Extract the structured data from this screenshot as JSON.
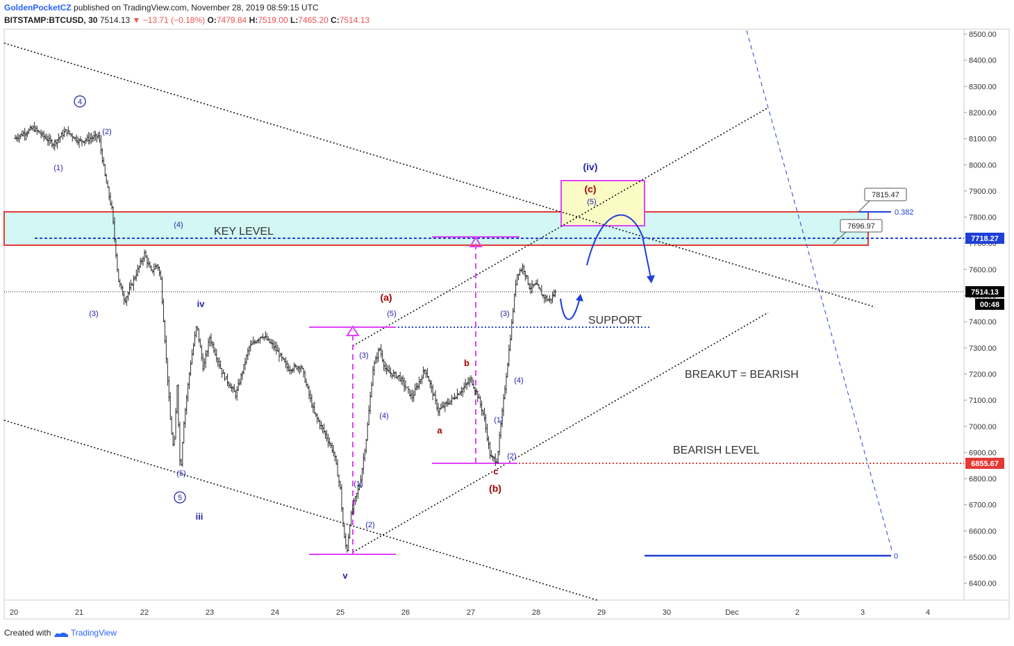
{
  "header": {
    "author": "GoldenPocketCZ",
    "published": "published on TradingView.com, November 28, 2019 08:59:15 UTC",
    "symbol": "BITSTAMP:BTCUSD, 30",
    "last": "7514.13",
    "change": "▼ −13.71 (−0.18%)",
    "o_label": "O:",
    "o": "7479.84",
    "h_label": "H:",
    "h": "7519.00",
    "l_label": "L:",
    "l": "7465.20",
    "c_label": "C:",
    "c": "7514.13"
  },
  "footer": {
    "prefix": "Created with",
    "brand": "TradingView"
  },
  "colors": {
    "key_zone_fill": "#d2f7f4",
    "key_zone_border": "#e53935",
    "target_box_fill": "#fbfbc6",
    "target_box_border": "#e040fb",
    "blue_line": "#1e3fd8",
    "red_line": "#e53935",
    "magenta": "#e040fb",
    "wave_blue": "#2222aa",
    "wave_red": "#a30000",
    "candle": "#111111"
  },
  "chart_data": {
    "type": "candlestick",
    "symbol": "BITSTAMP:BTCUSD",
    "timeframe": "30",
    "x_ticks": [
      "20",
      "21",
      "22",
      "23",
      "24",
      "25",
      "26",
      "27",
      "28",
      "29",
      "30",
      "Dec",
      "2",
      "3",
      "4"
    ],
    "y_ticks": [
      "8500.00",
      "8400.00",
      "8300.00",
      "8200.00",
      "8100.00",
      "8000.00",
      "7900.00",
      "7800.00",
      "7700.00",
      "7600.00",
      "7500.00",
      "7400.00",
      "7300.00",
      "7200.00",
      "7100.00",
      "7000.00",
      "6900.00",
      "6800.00",
      "6700.00",
      "6600.00",
      "6500.00",
      "6400.00"
    ],
    "ylim": [
      6310,
      8540
    ],
    "price_series": [
      [
        20.0,
        8100
      ],
      [
        20.3,
        8140
      ],
      [
        20.6,
        8080
      ],
      [
        20.8,
        8130
      ],
      [
        21.0,
        8090
      ],
      [
        21.3,
        8110
      ],
      [
        21.4,
        7950
      ],
      [
        21.5,
        7830
      ],
      [
        21.6,
        7560
      ],
      [
        21.7,
        7480
      ],
      [
        21.9,
        7600
      ],
      [
        22.0,
        7660
      ],
      [
        22.1,
        7590
      ],
      [
        22.2,
        7620
      ],
      [
        22.25,
        7560
      ],
      [
        22.3,
        7380
      ],
      [
        22.4,
        7010
      ],
      [
        22.45,
        6900
      ],
      [
        22.5,
        7160
      ],
      [
        22.55,
        6810
      ],
      [
        22.6,
        7010
      ],
      [
        22.7,
        7230
      ],
      [
        22.8,
        7390
      ],
      [
        22.9,
        7220
      ],
      [
        23.0,
        7340
      ],
      [
        23.2,
        7200
      ],
      [
        23.4,
        7120
      ],
      [
        23.6,
        7300
      ],
      [
        23.8,
        7350
      ],
      [
        24.0,
        7300
      ],
      [
        24.2,
        7220
      ],
      [
        24.4,
        7230
      ],
      [
        24.6,
        7050
      ],
      [
        24.75,
        6980
      ],
      [
        24.9,
        6900
      ],
      [
        25.0,
        6760
      ],
      [
        25.05,
        6590
      ],
      [
        25.1,
        6520
      ],
      [
        25.15,
        6640
      ],
      [
        25.2,
        6700
      ],
      [
        25.3,
        6780
      ],
      [
        25.4,
        6960
      ],
      [
        25.5,
        7220
      ],
      [
        25.6,
        7300
      ],
      [
        25.7,
        7210
      ],
      [
        25.9,
        7190
      ],
      [
        26.1,
        7110
      ],
      [
        26.3,
        7220
      ],
      [
        26.5,
        7060
      ],
      [
        26.7,
        7100
      ],
      [
        26.9,
        7150
      ],
      [
        27.0,
        7180
      ],
      [
        27.1,
        7120
      ],
      [
        27.2,
        7040
      ],
      [
        27.3,
        6880
      ],
      [
        27.4,
        6870
      ],
      [
        27.5,
        7100
      ],
      [
        27.6,
        7330
      ],
      [
        27.7,
        7580
      ],
      [
        27.8,
        7610
      ],
      [
        27.9,
        7530
      ],
      [
        28.0,
        7540
      ],
      [
        28.1,
        7500
      ],
      [
        28.2,
        7480
      ],
      [
        28.3,
        7514.13
      ]
    ],
    "levels": [
      {
        "label": "KEY LEVEL",
        "from": 7700,
        "to": 7818
      },
      {
        "label": "SUPPORT",
        "value": 7375
      },
      {
        "label": "BEARISH LEVEL",
        "value": 6855.67
      }
    ],
    "price_tags": [
      "7718.27",
      "7514.13",
      "6855.67"
    ],
    "countdown": "00:48",
    "callouts": [
      "7815.47",
      "7696.97"
    ],
    "fib_labels": [
      "0.382",
      "0"
    ],
    "annotations": [
      "KEY LEVEL",
      "SUPPORT",
      "BREAKUT = BEARISH",
      "BEARISH LEVEL"
    ],
    "wave_labels": {
      "circled": [
        "4",
        "5"
      ],
      "roman": [
        "iv",
        "iii",
        "v"
      ],
      "paren_blue": [
        "(1)",
        "(2)",
        "(3)",
        "(4)",
        "(5)",
        "(iv)",
        "(5)"
      ],
      "paren_red": [
        "(a)",
        "(b)",
        "(c)"
      ],
      "letters": [
        "a",
        "b",
        "c"
      ]
    }
  }
}
